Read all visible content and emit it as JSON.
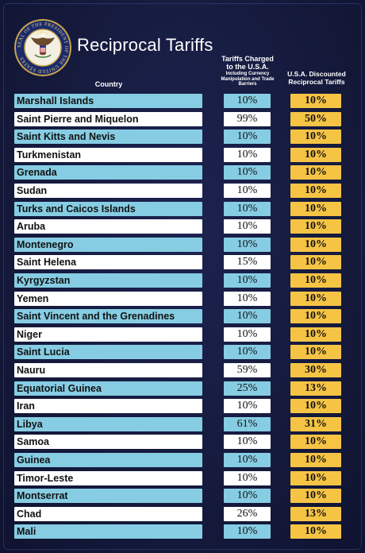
{
  "title": "Reciprocal Tariffs",
  "seal": {
    "ring_text": "SEAL OF THE PRESIDENT OF THE UNITED STATES"
  },
  "headers": {
    "country": "Country",
    "charged_main": "Tariffs Charged to the U.S.A.",
    "charged_sub": "Including Currency Manipulation and Trade Barriers",
    "discounted": "U.S.A. Discounted Reciprocal Tariffs"
  },
  "colors": {
    "background": "#151a3c",
    "row_blue": "#86cde3",
    "row_white": "#ffffff",
    "discounted": "#f6c445"
  },
  "rows": [
    {
      "country": "Marshall Islands",
      "charged": "10%",
      "discounted": "10%"
    },
    {
      "country": "Saint Pierre and Miquelon",
      "charged": "99%",
      "discounted": "50%"
    },
    {
      "country": "Saint Kitts and Nevis",
      "charged": "10%",
      "discounted": "10%"
    },
    {
      "country": "Turkmenistan",
      "charged": "10%",
      "discounted": "10%"
    },
    {
      "country": "Grenada",
      "charged": "10%",
      "discounted": "10%"
    },
    {
      "country": "Sudan",
      "charged": "10%",
      "discounted": "10%"
    },
    {
      "country": "Turks and Caicos Islands",
      "charged": "10%",
      "discounted": "10%"
    },
    {
      "country": "Aruba",
      "charged": "10%",
      "discounted": "10%"
    },
    {
      "country": "Montenegro",
      "charged": "10%",
      "discounted": "10%"
    },
    {
      "country": "Saint Helena",
      "charged": "15%",
      "discounted": "10%"
    },
    {
      "country": "Kyrgyzstan",
      "charged": "10%",
      "discounted": "10%"
    },
    {
      "country": "Yemen",
      "charged": "10%",
      "discounted": "10%"
    },
    {
      "country": "Saint Vincent and the Grenadines",
      "charged": "10%",
      "discounted": "10%"
    },
    {
      "country": "Niger",
      "charged": "10%",
      "discounted": "10%"
    },
    {
      "country": "Saint Lucia",
      "charged": "10%",
      "discounted": "10%"
    },
    {
      "country": "Nauru",
      "charged": "59%",
      "discounted": "30%"
    },
    {
      "country": "Equatorial Guinea",
      "charged": "25%",
      "discounted": "13%"
    },
    {
      "country": "Iran",
      "charged": "10%",
      "discounted": "10%"
    },
    {
      "country": "Libya",
      "charged": "61%",
      "discounted": "31%"
    },
    {
      "country": "Samoa",
      "charged": "10%",
      "discounted": "10%"
    },
    {
      "country": "Guinea",
      "charged": "10%",
      "discounted": "10%"
    },
    {
      "country": "Timor-Leste",
      "charged": "10%",
      "discounted": "10%"
    },
    {
      "country": "Montserrat",
      "charged": "10%",
      "discounted": "10%"
    },
    {
      "country": "Chad",
      "charged": "26%",
      "discounted": "13%"
    },
    {
      "country": "Mali",
      "charged": "10%",
      "discounted": "10%"
    }
  ]
}
